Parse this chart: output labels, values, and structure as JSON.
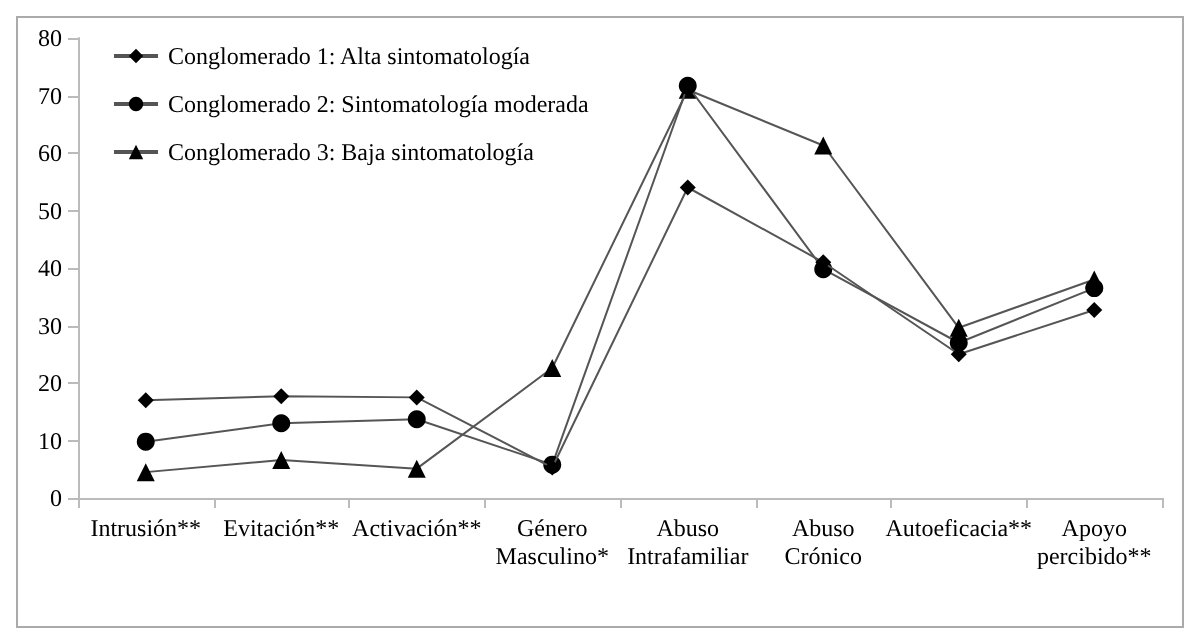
{
  "chart_data": {
    "type": "line",
    "categories": [
      "Intrusión**",
      "Evitación**",
      "Activación**",
      "Género\nMasculino*",
      "Abuso\nIntrafamiliar",
      "Abuso\nCrónico",
      "Autoeficacia**",
      "Apoyo\npercibido**"
    ],
    "series": [
      {
        "name": "Conglomerado 1: Alta sintomatología",
        "color": "#000000",
        "marker": "diamond",
        "values": [
          17,
          17.7,
          17.5,
          5.3,
          54,
          41,
          25,
          32.7
        ]
      },
      {
        "name": "Conglomerado 2: Sintomatología moderada",
        "color": "#000000",
        "marker": "circle",
        "values": [
          9.8,
          13,
          13.7,
          5.8,
          71.7,
          39.8,
          27,
          36.5
        ]
      },
      {
        "name": "Conglomerado 3: Baja sintomatología",
        "color": "#000000",
        "marker": "triangle",
        "values": [
          4.5,
          6.6,
          5.1,
          22.6,
          71,
          61.3,
          29.6,
          38
        ]
      }
    ],
    "ylim": [
      0,
      80
    ],
    "yticks": [
      0,
      10,
      20,
      30,
      40,
      50,
      60,
      70,
      80
    ],
    "grid": false,
    "legend": "top left",
    "line_style": "solid"
  }
}
